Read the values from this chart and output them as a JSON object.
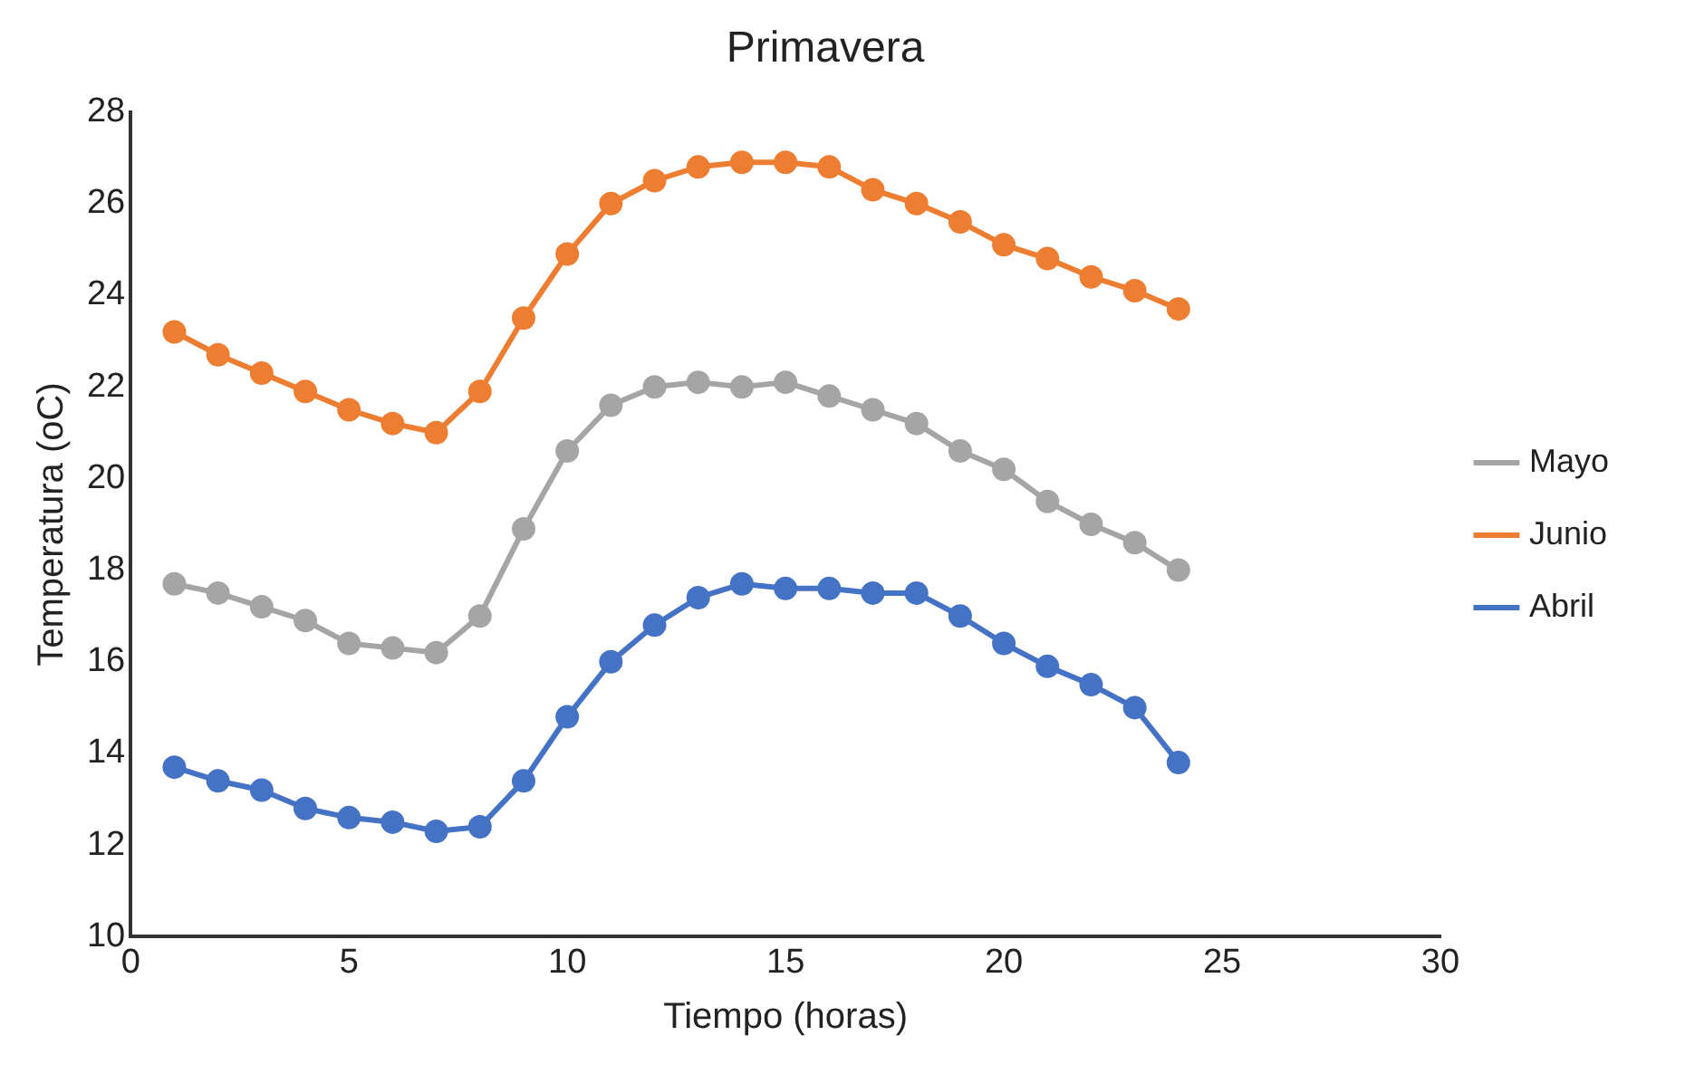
{
  "chart_data": {
    "type": "line",
    "title": "Primavera",
    "xlabel": "Tiempo (horas)",
    "ylabel": "Temperatura (oC)",
    "x": [
      1,
      2,
      3,
      4,
      5,
      6,
      7,
      8,
      9,
      10,
      11,
      12,
      13,
      14,
      15,
      16,
      17,
      18,
      19,
      20,
      21,
      22,
      23,
      24
    ],
    "series": [
      {
        "name": "Mayo",
        "color": "#a5a5a5",
        "values": [
          17.7,
          17.5,
          17.2,
          16.9,
          16.4,
          16.3,
          16.2,
          17.0,
          18.9,
          20.6,
          21.6,
          22.0,
          22.1,
          22.0,
          22.1,
          21.8,
          21.5,
          21.2,
          20.6,
          20.2,
          19.5,
          19.0,
          18.6,
          18.0
        ]
      },
      {
        "name": "Junio",
        "color": "#ed7d31",
        "values": [
          23.2,
          22.7,
          22.3,
          21.9,
          21.5,
          21.2,
          21.0,
          21.9,
          23.5,
          24.9,
          26.0,
          26.5,
          26.8,
          26.9,
          26.9,
          26.8,
          26.3,
          26.0,
          25.6,
          25.1,
          24.8,
          24.4,
          24.1,
          23.7
        ]
      },
      {
        "name": "Abril",
        "color": "#4472c4",
        "values": [
          13.7,
          13.4,
          13.2,
          12.8,
          12.6,
          12.5,
          12.3,
          12.4,
          13.4,
          14.8,
          16.0,
          16.8,
          17.4,
          17.7,
          17.6,
          17.6,
          17.5,
          17.5,
          17.0,
          16.4,
          15.9,
          15.5,
          15.0,
          13.8
        ]
      }
    ],
    "xlim": [
      0,
      30
    ],
    "xticks": [
      0,
      5,
      10,
      15,
      20,
      25,
      30
    ],
    "ylim": [
      10,
      28
    ],
    "yticks": [
      10,
      12,
      14,
      16,
      18,
      20,
      22,
      24,
      26,
      28
    ],
    "grid": false,
    "legend": "right",
    "marker": "circle",
    "line_style": "solid"
  }
}
